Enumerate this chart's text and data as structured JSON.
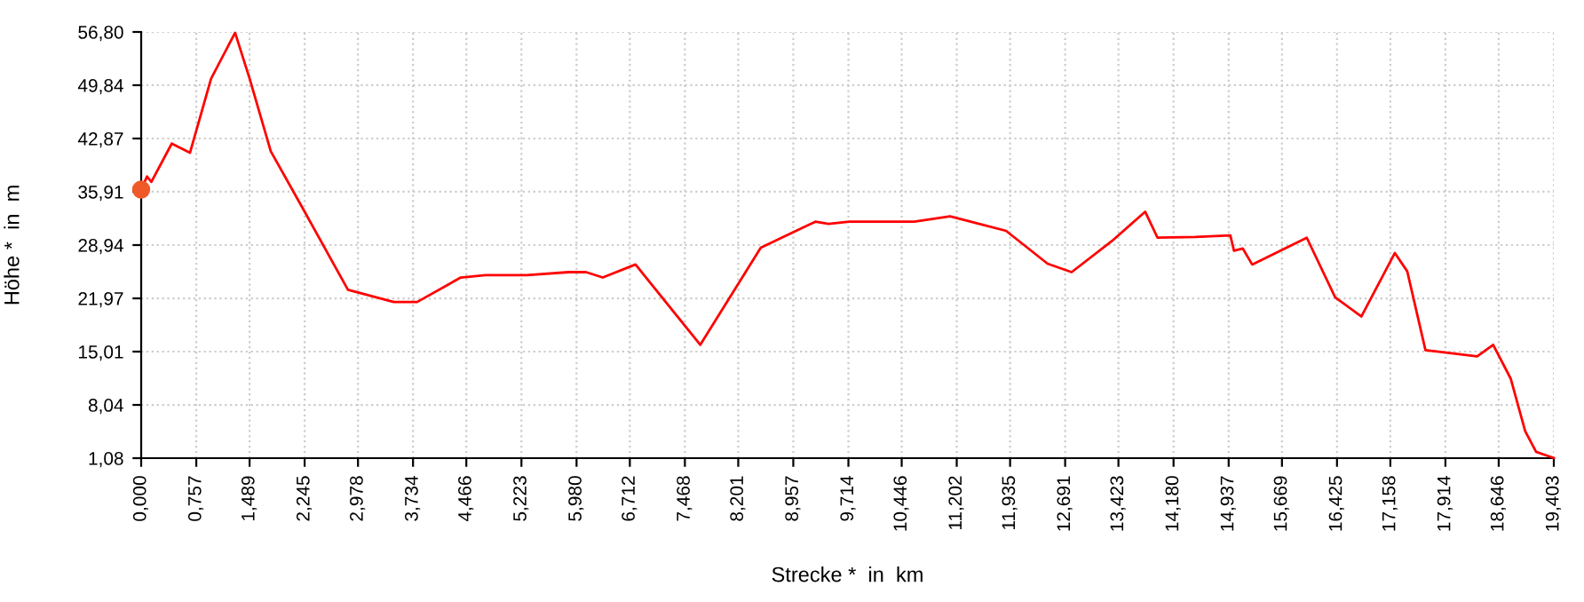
{
  "chart_data": {
    "type": "line",
    "xlabel": "Strecke *  in  km",
    "ylabel": "Höhe *  in  m",
    "xlim": [
      0,
      19.403
    ],
    "ylim": [
      1.08,
      56.8
    ],
    "xticks": [
      {
        "value": 0,
        "label": "0,000"
      },
      {
        "value": 0.757,
        "label": "0,757"
      },
      {
        "value": 1.489,
        "label": "1,489"
      },
      {
        "value": 2.245,
        "label": "2,245"
      },
      {
        "value": 2.978,
        "label": "2,978"
      },
      {
        "value": 3.734,
        "label": "3,734"
      },
      {
        "value": 4.466,
        "label": "4,466"
      },
      {
        "value": 5.223,
        "label": "5,223"
      },
      {
        "value": 5.98,
        "label": "5,980"
      },
      {
        "value": 6.712,
        "label": "6,712"
      },
      {
        "value": 7.468,
        "label": "7,468"
      },
      {
        "value": 8.201,
        "label": "8,201"
      },
      {
        "value": 8.957,
        "label": "8,957"
      },
      {
        "value": 9.714,
        "label": "9,714"
      },
      {
        "value": 10.446,
        "label": "10,446"
      },
      {
        "value": 11.202,
        "label": "11,202"
      },
      {
        "value": 11.935,
        "label": "11,935"
      },
      {
        "value": 12.691,
        "label": "12,691"
      },
      {
        "value": 13.423,
        "label": "13,423"
      },
      {
        "value": 14.18,
        "label": "14,180"
      },
      {
        "value": 14.937,
        "label": "14,937"
      },
      {
        "value": 15.669,
        "label": "15,669"
      },
      {
        "value": 16.425,
        "label": "16,425"
      },
      {
        "value": 17.158,
        "label": "17,158"
      },
      {
        "value": 17.914,
        "label": "17,914"
      },
      {
        "value": 18.646,
        "label": "18,646"
      },
      {
        "value": 19.403,
        "label": "19,403"
      }
    ],
    "yticks": [
      {
        "value": 1.08,
        "label": "1,08"
      },
      {
        "value": 8.04,
        "label": "8,04"
      },
      {
        "value": 15.01,
        "label": "15,01"
      },
      {
        "value": 21.97,
        "label": "21,97"
      },
      {
        "value": 28.94,
        "label": "28,94"
      },
      {
        "value": 35.91,
        "label": "35,91"
      },
      {
        "value": 42.87,
        "label": "42,87"
      },
      {
        "value": 49.84,
        "label": "49,84"
      },
      {
        "value": 56.8,
        "label": "56,80"
      }
    ],
    "grid": true,
    "legend": false,
    "line_style": "solid",
    "series": [
      {
        "color": "#ff0000",
        "marker": "none",
        "x": [
          0,
          0.08,
          0.14,
          0.42,
          0.67,
          0.96,
          1.29,
          1.49,
          1.78,
          2.21,
          2.84,
          3.47,
          3.79,
          4.39,
          4.73,
          5.3,
          5.87,
          6.11,
          6.34,
          6.79,
          7.68,
          8.51,
          9.26,
          9.44,
          9.73,
          10.62,
          11.11,
          11.88,
          12.45,
          12.78,
          13.35,
          13.79,
          13.96,
          14.48,
          14.96,
          15.01,
          15.13,
          15.26,
          16.01,
          16.4,
          16.76,
          17.22,
          17.39,
          17.64,
          17.9,
          18.35,
          18.57,
          18.81,
          19.01,
          19.16,
          19.403
        ],
        "values": [
          36.2,
          37.9,
          37.2,
          42.2,
          41.0,
          50.7,
          56.7,
          50.7,
          41.2,
          33.9,
          23.1,
          21.5,
          21.5,
          24.7,
          25.0,
          25.0,
          25.4,
          25.4,
          24.7,
          26.4,
          15.9,
          28.6,
          32.0,
          31.7,
          32.0,
          32.0,
          32.7,
          30.8,
          26.5,
          25.4,
          29.6,
          33.3,
          29.9,
          30.0,
          30.2,
          28.2,
          28.5,
          26.4,
          29.9,
          22.1,
          19.6,
          27.9,
          25.5,
          15.2,
          14.9,
          14.4,
          15.9,
          11.5,
          4.6,
          1.9,
          1.1
        ]
      },
      {
        "type": "scatter",
        "color": "#f05a28",
        "marker": "circle",
        "x": [
          0
        ],
        "values": [
          36.2
        ]
      }
    ]
  }
}
